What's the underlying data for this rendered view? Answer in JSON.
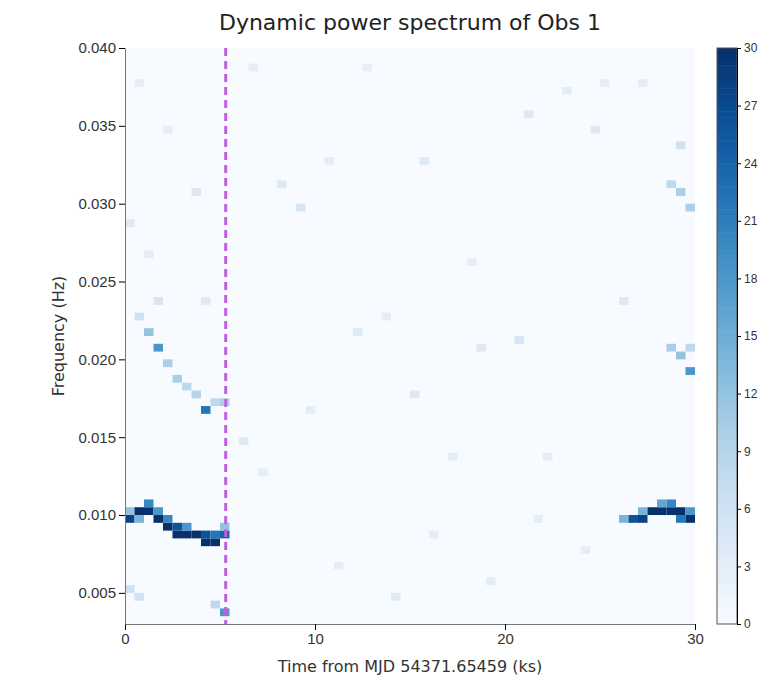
{
  "chart_data": {
    "type": "heatmap",
    "title": "Dynamic power spectrum of Obs 1",
    "x_label": "Time from MJD 54371.65459 (ks)",
    "y_label": "Frequency (Hz)",
    "xlim": [
      0,
      30
    ],
    "xticks": [
      0,
      10,
      20,
      30
    ],
    "ylim": [
      0.003,
      0.04
    ],
    "yticks": [
      0.005,
      {
        "value": 0.01,
        "label": "0.010"
      },
      0.015,
      {
        "value": 0.02,
        "label": "0.020"
      },
      0.025,
      {
        "value": 0.03,
        "label": "0.030"
      },
      0.035,
      {
        "value": 0.04,
        "label": "0.040"
      }
    ],
    "color": "Blues",
    "time_bin": 0.5,
    "freq_bin": 0.0005,
    "dashed_line": 5.3,
    "colorbar": {
      "range": [
        0,
        30
      ],
      "ticks": [
        0,
        3,
        6,
        9,
        12,
        15,
        18,
        21,
        24,
        27,
        30
      ]
    },
    "cells": [
      [
        0,
        0.0095,
        28
      ],
      [
        0,
        0.01,
        12
      ],
      [
        0.5,
        0.01,
        30
      ],
      [
        0.5,
        0.0095,
        14
      ],
      [
        1,
        0.01,
        30
      ],
      [
        1,
        0.0105,
        20
      ],
      [
        1.5,
        0.0095,
        30
      ],
      [
        1.5,
        0.01,
        18
      ],
      [
        2,
        0.009,
        30
      ],
      [
        2,
        0.0095,
        20
      ],
      [
        2.5,
        0.0085,
        30
      ],
      [
        2.5,
        0.009,
        26
      ],
      [
        3,
        0.0085,
        30
      ],
      [
        3,
        0.009,
        18
      ],
      [
        3.5,
        0.0085,
        30
      ],
      [
        4,
        0.008,
        30
      ],
      [
        4,
        0.0085,
        26
      ],
      [
        4.5,
        0.008,
        30
      ],
      [
        4.5,
        0.0085,
        22
      ],
      [
        5,
        0.0085,
        24
      ],
      [
        5,
        0.009,
        12
      ],
      [
        1,
        0.0215,
        12
      ],
      [
        1.5,
        0.0205,
        18
      ],
      [
        2,
        0.0195,
        10
      ],
      [
        2.5,
        0.0185,
        10
      ],
      [
        3,
        0.018,
        8
      ],
      [
        3.5,
        0.0175,
        9
      ],
      [
        4,
        0.0165,
        22
      ],
      [
        4.5,
        0.017,
        8
      ],
      [
        5,
        0.017,
        10
      ],
      [
        5,
        0.0035,
        18
      ],
      [
        4.5,
        0.004,
        8
      ],
      [
        0.5,
        0.0045,
        6
      ],
      [
        0,
        0.005,
        6
      ],
      [
        26,
        0.0095,
        14
      ],
      [
        26.5,
        0.0095,
        26
      ],
      [
        27,
        0.0095,
        28
      ],
      [
        27,
        0.01,
        14
      ],
      [
        27.5,
        0.01,
        30
      ],
      [
        28,
        0.01,
        30
      ],
      [
        28,
        0.0105,
        16
      ],
      [
        28.5,
        0.01,
        30
      ],
      [
        28.5,
        0.0105,
        20
      ],
      [
        29,
        0.01,
        30
      ],
      [
        29,
        0.0095,
        22
      ],
      [
        29.5,
        0.0095,
        30
      ],
      [
        29.5,
        0.01,
        18
      ],
      [
        28.5,
        0.0205,
        10
      ],
      [
        29,
        0.02,
        12
      ],
      [
        29.5,
        0.019,
        18
      ],
      [
        29.5,
        0.0205,
        8
      ],
      [
        28.5,
        0.031,
        8
      ],
      [
        29,
        0.0305,
        10
      ],
      [
        29.5,
        0.0295,
        10
      ],
      [
        29,
        0.0335,
        6
      ],
      [
        8,
        0.031,
        4
      ],
      [
        9,
        0.0295,
        5
      ],
      [
        10.5,
        0.0325,
        3
      ],
      [
        12,
        0.0215,
        4
      ],
      [
        13.5,
        0.0225,
        3
      ],
      [
        15,
        0.0175,
        4
      ],
      [
        17,
        0.0135,
        3
      ],
      [
        18.5,
        0.0205,
        4
      ],
      [
        20.5,
        0.021,
        5
      ],
      [
        21,
        0.0355,
        4
      ],
      [
        23,
        0.037,
        3
      ],
      [
        24.5,
        0.0345,
        4
      ],
      [
        25,
        0.0375,
        3
      ],
      [
        6,
        0.0145,
        4
      ],
      [
        7,
        0.0125,
        3
      ],
      [
        11,
        0.0065,
        3
      ],
      [
        14,
        0.0045,
        4
      ],
      [
        16,
        0.0085,
        3
      ],
      [
        19,
        0.0055,
        3
      ],
      [
        22,
        0.0135,
        3
      ],
      [
        24,
        0.0075,
        3
      ],
      [
        2,
        0.0345,
        3
      ],
      [
        3.5,
        0.0305,
        4
      ],
      [
        1,
        0.0265,
        3
      ],
      [
        0.5,
        0.0375,
        3
      ],
      [
        27,
        0.0375,
        3
      ],
      [
        26,
        0.0235,
        4
      ],
      [
        6.5,
        0.0385,
        3
      ],
      [
        12.5,
        0.0385,
        3
      ],
      [
        18,
        0.026,
        3
      ],
      [
        9.5,
        0.0165,
        3
      ],
      [
        21.5,
        0.0095,
        3
      ],
      [
        15.5,
        0.0325,
        4
      ],
      [
        4,
        0.0235,
        4
      ],
      [
        0,
        0.0285,
        4
      ],
      [
        0.5,
        0.0225,
        6
      ],
      [
        1.5,
        0.0235,
        5
      ]
    ]
  }
}
